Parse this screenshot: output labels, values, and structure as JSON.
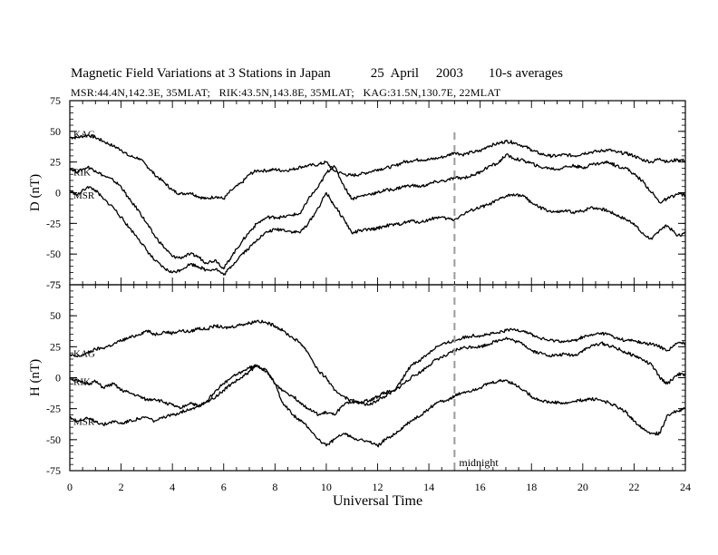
{
  "title": {
    "main": "Magnetic Field Variations at 3 Stations in Japan",
    "date": "25  April     2003",
    "averaging": "10-s averages"
  },
  "subtitle": "MSR:44.4N,142.3E, 35MLAT;   RIK:43.5N,143.8E, 35MLAT;   KAG:31.5N,130.7E, 22MLAT",
  "colors": {
    "trace": "#000000",
    "midnight_line": "#9a9a9a",
    "axis": "#000000"
  },
  "annotation": {
    "text": "midnight",
    "x": 15
  },
  "chart_data": [
    {
      "type": "line",
      "panel": "top",
      "ylabel": "D  (nT)",
      "xlim": [
        0,
        24
      ],
      "ylim": [
        -75,
        75
      ],
      "yticks": [
        75,
        50,
        25,
        0,
        -25,
        -50,
        -75
      ],
      "grid": false,
      "series": [
        {
          "name": "KAG",
          "x": [
            0,
            0.3,
            0.7,
            1,
            1.3,
            1.7,
            2,
            2.3,
            2.7,
            3,
            3.3,
            3.7,
            4,
            4.3,
            4.7,
            5,
            5.3,
            5.7,
            6,
            6.3,
            6.7,
            7,
            7.3,
            7.7,
            8,
            8.3,
            8.7,
            9,
            9.3,
            9.7,
            10,
            10.3,
            10.7,
            11,
            11.3,
            11.7,
            12,
            12.3,
            12.7,
            13,
            13.3,
            13.7,
            14,
            14.3,
            14.7,
            15,
            15.3,
            15.7,
            16,
            16.3,
            16.7,
            17,
            17.3,
            17.7,
            18,
            18.3,
            18.7,
            19,
            19.3,
            19.7,
            20,
            20.3,
            20.7,
            21,
            21.3,
            21.7,
            22,
            22.3,
            22.7,
            23,
            23.3,
            23.7,
            24
          ],
          "y": [
            45,
            45,
            47,
            45,
            42,
            38,
            35,
            30,
            28,
            22,
            15,
            8,
            2,
            -1,
            0,
            -3,
            -5,
            -3,
            -5,
            2,
            8,
            15,
            18,
            18,
            19,
            18,
            19,
            21,
            22,
            23,
            25,
            18,
            15,
            14,
            15,
            17,
            19,
            20,
            22,
            25,
            26,
            27,
            27,
            28,
            30,
            33,
            31,
            33,
            34,
            38,
            40,
            42,
            41,
            38,
            35,
            32,
            30,
            30,
            31,
            30,
            32,
            33,
            34,
            35,
            33,
            32,
            30,
            27,
            25,
            28,
            25,
            27,
            26
          ]
        },
        {
          "name": "RIK",
          "x": [
            0,
            0.3,
            0.7,
            1,
            1.3,
            1.7,
            2,
            2.3,
            2.7,
            3,
            3.3,
            3.7,
            4,
            4.3,
            4.7,
            5,
            5.3,
            5.7,
            6,
            6.3,
            6.7,
            7,
            7.3,
            7.7,
            8,
            8.3,
            8.7,
            9,
            9.3,
            9.7,
            10,
            10.3,
            10.7,
            11,
            11.3,
            11.7,
            12,
            12.3,
            12.7,
            13,
            13.3,
            13.7,
            14,
            14.3,
            14.7,
            15,
            15.3,
            15.7,
            16,
            16.3,
            16.7,
            17,
            17.3,
            17.7,
            18,
            18.3,
            18.7,
            19,
            19.3,
            19.7,
            20,
            20.3,
            20.7,
            21,
            21.3,
            21.7,
            22,
            22.3,
            22.7,
            23,
            23.3,
            23.7,
            24
          ],
          "y": [
            20,
            17,
            21,
            18,
            14,
            10,
            5,
            -5,
            -15,
            -25,
            -35,
            -45,
            -52,
            -53,
            -50,
            -52,
            -57,
            -55,
            -62,
            -52,
            -40,
            -32,
            -25,
            -20,
            -20,
            -20,
            -18,
            -17,
            -5,
            5,
            16,
            22,
            5,
            -5,
            -3,
            -1,
            0,
            2,
            3,
            5,
            6,
            5,
            7,
            9,
            10,
            12,
            12,
            14,
            17,
            21,
            24,
            31,
            28,
            26,
            24,
            21,
            20,
            19,
            21,
            22,
            20,
            23,
            24,
            25,
            22,
            20,
            15,
            10,
            0,
            -8,
            -5,
            -1,
            -2
          ]
        },
        {
          "name": "MSR",
          "x": [
            0,
            0.3,
            0.7,
            1,
            1.3,
            1.7,
            2,
            2.3,
            2.7,
            3,
            3.3,
            3.7,
            4,
            4.3,
            4.7,
            5,
            5.3,
            5.7,
            6,
            6.3,
            6.7,
            7,
            7.3,
            7.7,
            8,
            8.3,
            8.7,
            9,
            9.3,
            9.7,
            10,
            10.3,
            10.7,
            11,
            11.3,
            11.7,
            12,
            12.3,
            12.7,
            13,
            13.3,
            13.7,
            14,
            14.3,
            14.7,
            15,
            15.3,
            15.7,
            16,
            16.3,
            16.7,
            17,
            17.3,
            17.7,
            18,
            18.3,
            18.7,
            19,
            19.3,
            19.7,
            20,
            20.3,
            20.7,
            21,
            21.3,
            21.7,
            22,
            22.3,
            22.7,
            23,
            23.3,
            23.7,
            24
          ],
          "y": [
            2,
            -2,
            5,
            2,
            -5,
            -12,
            -20,
            -28,
            -38,
            -47,
            -55,
            -62,
            -65,
            -63,
            -58,
            -60,
            -63,
            -62,
            -67,
            -60,
            -50,
            -45,
            -38,
            -32,
            -30,
            -30,
            -32,
            -32,
            -25,
            -12,
            0,
            -10,
            -22,
            -33,
            -31,
            -30,
            -29,
            -27,
            -26,
            -25,
            -23,
            -24,
            -22,
            -20,
            -21,
            -22,
            -18,
            -14,
            -12,
            -10,
            -6,
            -3,
            -1,
            -3,
            -8,
            -12,
            -15,
            -16,
            -15,
            -16,
            -15,
            -12,
            -13,
            -15,
            -18,
            -22,
            -25,
            -33,
            -38,
            -30,
            -27,
            -35,
            -33
          ]
        }
      ]
    },
    {
      "type": "line",
      "panel": "bottom",
      "xlabel": "Universal Time",
      "ylabel": "H  (nT)",
      "xlim": [
        0,
        24
      ],
      "xticks": [
        0,
        2,
        4,
        6,
        8,
        10,
        12,
        14,
        16,
        18,
        20,
        22,
        24
      ],
      "ylim": [
        -75,
        75
      ],
      "yticks": [
        75,
        50,
        25,
        0,
        -25,
        -50,
        -75
      ],
      "grid": false,
      "series": [
        {
          "name": "KAG",
          "x": [
            0,
            0.3,
            0.7,
            1,
            1.3,
            1.7,
            2,
            2.3,
            2.7,
            3,
            3.3,
            3.7,
            4,
            4.3,
            4.7,
            5,
            5.3,
            5.7,
            6,
            6.3,
            6.7,
            7,
            7.3,
            7.7,
            8,
            8.3,
            8.7,
            9,
            9.3,
            9.7,
            10,
            10.3,
            10.7,
            11,
            11.3,
            11.7,
            12,
            12.3,
            12.7,
            13,
            13.3,
            13.7,
            14,
            14.3,
            14.7,
            15,
            15.3,
            15.7,
            16,
            16.3,
            16.7,
            17,
            17.3,
            17.7,
            18,
            18.3,
            18.7,
            19,
            19.3,
            19.7,
            20,
            20.3,
            20.7,
            21,
            21.3,
            21.7,
            22,
            22.3,
            22.7,
            23,
            23.3,
            23.7,
            24
          ],
          "y": [
            18,
            17,
            20,
            23,
            24,
            27,
            30,
            32,
            35,
            38,
            35,
            37,
            36,
            38,
            37,
            40,
            39,
            42,
            40,
            41,
            43,
            44,
            46,
            44,
            42,
            38,
            32,
            28,
            20,
            5,
            0,
            -10,
            -15,
            -20,
            -20,
            -18,
            -15,
            -12,
            -10,
            0,
            10,
            15,
            20,
            25,
            28,
            30,
            32,
            34,
            34,
            35,
            36,
            38,
            39,
            38,
            35,
            32,
            30,
            30,
            29,
            30,
            33,
            34,
            36,
            35,
            32,
            30,
            30,
            28,
            27,
            25,
            22,
            28,
            28
          ]
        },
        {
          "name": "RIK",
          "x": [
            0,
            0.3,
            0.7,
            1,
            1.3,
            1.7,
            2,
            2.3,
            2.7,
            3,
            3.3,
            3.7,
            4,
            4.3,
            4.7,
            5,
            5.3,
            5.7,
            6,
            6.3,
            6.7,
            7,
            7.3,
            7.7,
            8,
            8.3,
            8.7,
            9,
            9.3,
            9.7,
            10,
            10.3,
            10.7,
            11,
            11.3,
            11.7,
            12,
            12.3,
            12.7,
            13,
            13.3,
            13.7,
            14,
            14.3,
            14.7,
            15,
            15.3,
            15.7,
            16,
            16.3,
            16.7,
            17,
            17.3,
            17.7,
            18,
            18.3,
            18.7,
            19,
            19.3,
            19.7,
            20,
            20.3,
            20.7,
            21,
            21.3,
            21.7,
            22,
            22.3,
            22.7,
            23,
            23.3,
            23.7,
            24
          ],
          "y": [
            0,
            -3,
            -5,
            -3,
            -8,
            -5,
            -10,
            -12,
            -15,
            -18,
            -17,
            -20,
            -22,
            -25,
            -20,
            -23,
            -20,
            -15,
            -10,
            -5,
            0,
            5,
            10,
            5,
            -5,
            -10,
            -15,
            -20,
            -25,
            -30,
            -28,
            -30,
            -22,
            -18,
            -20,
            -22,
            -18,
            -15,
            -10,
            -5,
            0,
            5,
            10,
            15,
            18,
            22,
            24,
            25,
            25,
            27,
            30,
            32,
            30,
            27,
            22,
            20,
            18,
            18,
            19,
            18,
            22,
            25,
            28,
            26,
            24,
            20,
            18,
            15,
            10,
            0,
            -5,
            3,
            2
          ]
        },
        {
          "name": "MSR",
          "x": [
            0,
            0.3,
            0.7,
            1,
            1.3,
            1.7,
            2,
            2.3,
            2.7,
            3,
            3.3,
            3.7,
            4,
            4.3,
            4.7,
            5,
            5.3,
            5.7,
            6,
            6.3,
            6.7,
            7,
            7.3,
            7.7,
            8,
            8.3,
            8.7,
            9,
            9.3,
            9.7,
            10,
            10.3,
            10.7,
            11,
            11.3,
            11.7,
            12,
            12.3,
            12.7,
            13,
            13.3,
            13.7,
            14,
            14.3,
            14.7,
            15,
            15.3,
            15.7,
            16,
            16.3,
            16.7,
            17,
            17.3,
            17.7,
            18,
            18.3,
            18.7,
            19,
            19.3,
            19.7,
            20,
            20.3,
            20.7,
            21,
            21.3,
            21.7,
            22,
            22.3,
            22.7,
            23,
            23.3,
            23.7,
            24
          ],
          "y": [
            -32,
            -35,
            -33,
            -35,
            -38,
            -35,
            -37,
            -35,
            -33,
            -32,
            -35,
            -32,
            -30,
            -28,
            -25,
            -23,
            -20,
            -10,
            -5,
            0,
            5,
            8,
            10,
            5,
            -5,
            -20,
            -30,
            -35,
            -40,
            -50,
            -55,
            -50,
            -45,
            -48,
            -50,
            -52,
            -55,
            -50,
            -45,
            -40,
            -35,
            -30,
            -25,
            -20,
            -18,
            -15,
            -12,
            -10,
            -8,
            -5,
            -3,
            -2,
            -5,
            -10,
            -15,
            -18,
            -20,
            -20,
            -21,
            -19,
            -18,
            -17,
            -18,
            -20,
            -23,
            -28,
            -35,
            -40,
            -45,
            -45,
            -30,
            -27,
            -25
          ]
        }
      ]
    }
  ]
}
